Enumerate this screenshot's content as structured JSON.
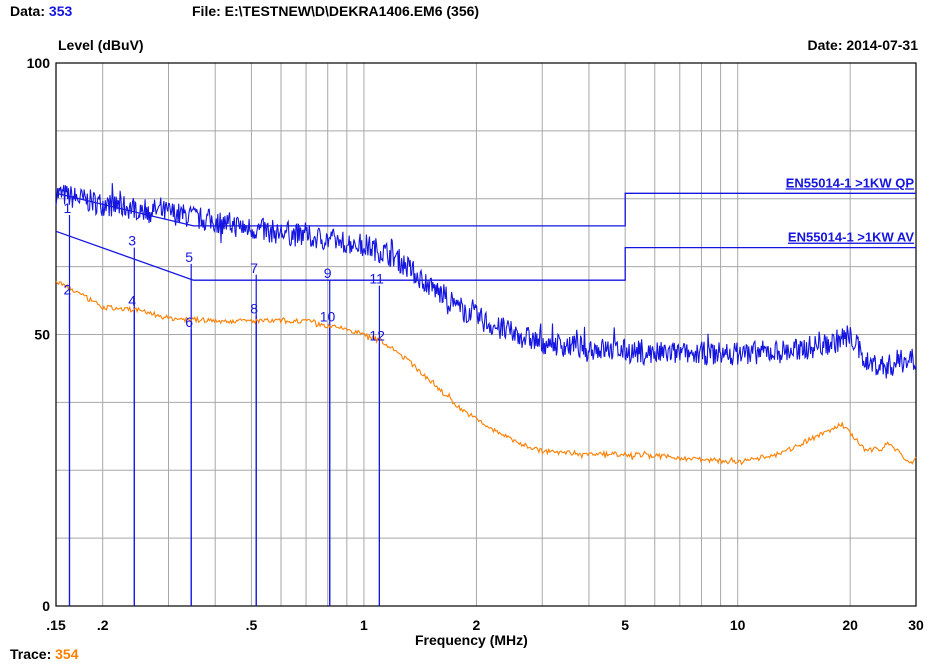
{
  "header": {
    "data_label": "Data:",
    "data_value": "353",
    "file_text": "File: E:\\TESTNEW\\D\\DEKRA1406.EM6  (356)",
    "level_label": "Level (dBuV)",
    "date_text": "Date: 2014-07-31",
    "trace_label": "Trace:",
    "trace_value": "354"
  },
  "colors": {
    "blue": "#1515e0",
    "orange": "#ff7f00",
    "grid": "#a8a8a8"
  },
  "chart_data": {
    "type": "line",
    "title": "",
    "xlabel": "Frequency (MHz)",
    "ylabel": "Level (dBuV)",
    "x_scale": "log",
    "xlim": [
      0.15,
      30
    ],
    "ylim": [
      0,
      100
    ],
    "grid": true,
    "x_tick_labels": [
      {
        "x": 0.15,
        "label": ".15"
      },
      {
        "x": 0.2,
        "label": ".2"
      },
      {
        "x": 0.5,
        "label": ".5"
      },
      {
        "x": 1,
        "label": "1"
      },
      {
        "x": 2,
        "label": "2"
      },
      {
        "x": 5,
        "label": "5"
      },
      {
        "x": 10,
        "label": "10"
      },
      {
        "x": 20,
        "label": "20"
      },
      {
        "x": 30,
        "label": "30"
      }
    ],
    "y_tick_labels": [
      {
        "y": 0,
        "label": "0"
      },
      {
        "y": 50,
        "label": "50"
      },
      {
        "y": 100,
        "label": "100"
      }
    ],
    "limit_lines": [
      {
        "name": "EN55014-1 >1KW QP",
        "color": "#1515e0",
        "points": [
          [
            0.15,
            76
          ],
          [
            0.35,
            70
          ],
          [
            5,
            70
          ],
          [
            5,
            76
          ],
          [
            30,
            76
          ]
        ]
      },
      {
        "name": "EN55014-1 >1KW AV",
        "color": "#1515e0",
        "points": [
          [
            0.15,
            69
          ],
          [
            0.35,
            60
          ],
          [
            5,
            60
          ],
          [
            5,
            66
          ],
          [
            30,
            66
          ]
        ]
      }
    ],
    "series": [
      {
        "color": "#1515e0",
        "noise": 2.2,
        "points": [
          [
            0.15,
            76
          ],
          [
            0.2,
            74
          ],
          [
            0.3,
            72.5
          ],
          [
            0.5,
            69.5
          ],
          [
            0.8,
            67.5
          ],
          [
            1.0,
            66.5
          ],
          [
            1.2,
            64.5
          ],
          [
            1.5,
            59
          ],
          [
            1.8,
            55
          ],
          [
            2.3,
            51
          ],
          [
            3,
            48.5
          ],
          [
            4,
            47.5
          ],
          [
            6,
            46.5
          ],
          [
            10,
            46.5
          ],
          [
            14,
            47
          ],
          [
            18,
            48.5
          ],
          [
            20,
            50
          ],
          [
            22,
            45
          ],
          [
            25,
            44
          ],
          [
            30,
            46
          ]
        ]
      },
      {
        "color": "#ff7f00",
        "noise": 0.45,
        "points": [
          [
            0.15,
            60
          ],
          [
            0.2,
            55
          ],
          [
            0.25,
            54.5
          ],
          [
            0.3,
            53
          ],
          [
            0.4,
            52.5
          ],
          [
            0.5,
            52.5
          ],
          [
            0.6,
            52.5
          ],
          [
            0.7,
            52.5
          ],
          [
            0.8,
            51.5
          ],
          [
            0.9,
            51
          ],
          [
            1.0,
            50
          ],
          [
            1.1,
            49
          ],
          [
            1.3,
            45.5
          ],
          [
            1.5,
            41.5
          ],
          [
            1.8,
            36.5
          ],
          [
            2.2,
            32.5
          ],
          [
            2.6,
            30
          ],
          [
            3,
            28.5
          ],
          [
            4,
            28
          ],
          [
            5,
            28
          ],
          [
            8,
            27
          ],
          [
            10,
            26.5
          ],
          [
            13,
            28
          ],
          [
            16,
            31
          ],
          [
            19,
            33.5
          ],
          [
            20.5,
            31
          ],
          [
            22,
            28.5
          ],
          [
            24,
            29
          ],
          [
            25,
            30
          ],
          [
            27,
            28.5
          ],
          [
            29,
            26
          ],
          [
            30,
            27.5
          ]
        ]
      }
    ],
    "markers": [
      {
        "label": "1",
        "x": 0.163,
        "level": 72
      },
      {
        "label": "2",
        "x": 0.163,
        "level": 57
      },
      {
        "label": "3",
        "x": 0.243,
        "level": 66
      },
      {
        "label": "4",
        "x": 0.243,
        "level": 55
      },
      {
        "label": "5",
        "x": 0.345,
        "level": 63
      },
      {
        "label": "6",
        "x": 0.345,
        "level": 51
      },
      {
        "label": "7",
        "x": 0.515,
        "level": 61
      },
      {
        "label": "8",
        "x": 0.515,
        "level": 53.5
      },
      {
        "label": "9",
        "x": 0.81,
        "level": 60
      },
      {
        "label": "10",
        "x": 0.81,
        "level": 52
      },
      {
        "label": "11",
        "x": 1.1,
        "level": 59
      },
      {
        "label": "12",
        "x": 1.1,
        "level": 48.5
      }
    ]
  }
}
